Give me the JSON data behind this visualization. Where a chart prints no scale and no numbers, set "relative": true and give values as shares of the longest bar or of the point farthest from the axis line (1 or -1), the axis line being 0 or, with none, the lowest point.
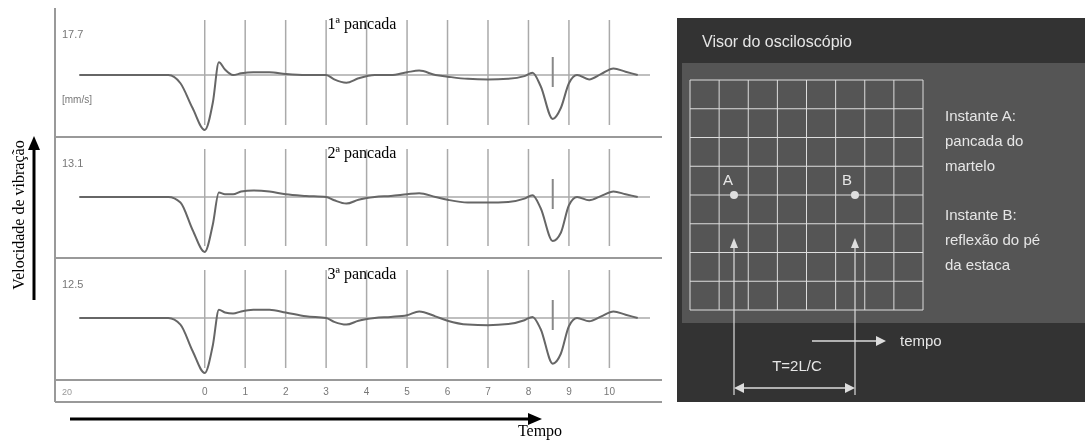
{
  "chart_data": [
    {
      "type": "line",
      "title": "1ª pancada",
      "relative": true,
      "grid": "x",
      "tick_labels": false,
      "xlim": [
        -3.7,
        11.3
      ],
      "xticks": [
        0,
        1,
        2,
        3,
        4,
        5,
        6,
        7,
        8,
        9,
        10
      ],
      "annotations": [
        "17.7",
        "[mm/s]"
      ],
      "ref_lines": [
        {
          "axis": "x",
          "value": 8.6
        }
      ],
      "series": [
        {
          "color": "#666666",
          "x": [
            -3.1,
            -1.3,
            -0.9,
            -0.6,
            -0.3,
            0,
            0.2,
            0.35,
            0.5,
            0.7,
            0.9,
            1.2,
            1.6,
            2,
            2.5,
            3,
            3.2,
            3.5,
            3.8,
            4.2,
            4.6,
            5,
            5.3,
            5.7,
            6,
            6.5,
            7,
            7.5,
            7.9,
            8.1,
            8.3,
            8.6,
            8.8,
            9,
            9.2,
            9.5,
            9.8,
            10.1,
            10.4,
            10.7
          ],
          "values": [
            0,
            0,
            0,
            -0.15,
            -0.6,
            -1,
            -0.5,
            0.23,
            0.1,
            0,
            0.03,
            0.05,
            0.05,
            0.02,
            0,
            0,
            -0.08,
            -0.14,
            -0.06,
            0,
            0,
            0.05,
            0.08,
            0,
            -0.03,
            -0.07,
            -0.08,
            -0.07,
            -0.02,
            0.04,
            -0.2,
            -0.8,
            -0.6,
            -0.15,
            0,
            -0.08,
            0.02,
            0.12,
            0.06,
            0
          ]
        }
      ]
    },
    {
      "type": "line",
      "title": "2ª pancada",
      "ylabel": "Velocidade de vibração",
      "relative": true,
      "grid": "x",
      "tick_labels": false,
      "xlim": [
        -3.7,
        11.3
      ],
      "xticks": [
        0,
        1,
        2,
        3,
        4,
        5,
        6,
        7,
        8,
        9,
        10
      ],
      "annotations": [
        "13.1"
      ],
      "ref_lines": [
        {
          "axis": "x",
          "value": 8.6
        }
      ],
      "series": [
        {
          "color": "#666666",
          "x": [
            -3.1,
            -1.3,
            -0.9,
            -0.6,
            -0.3,
            0,
            0.2,
            0.35,
            0.5,
            0.7,
            0.9,
            1.2,
            1.6,
            2,
            2.5,
            3,
            3.2,
            3.5,
            3.8,
            4.2,
            4.6,
            5,
            5.3,
            5.7,
            6,
            6.5,
            7,
            7.5,
            7.9,
            8.1,
            8.3,
            8.6,
            8.8,
            9,
            9.2,
            9.5,
            9.8,
            10.1,
            10.4,
            10.7
          ],
          "values": [
            0,
            0,
            0,
            -0.1,
            -0.6,
            -1,
            -0.5,
            0.08,
            0.05,
            0.05,
            0.1,
            0.12,
            0.1,
            0.05,
            0.02,
            0,
            -0.06,
            -0.12,
            -0.05,
            0,
            0.02,
            0.05,
            0.07,
            0,
            -0.05,
            -0.1,
            -0.1,
            -0.09,
            -0.03,
            0.03,
            -0.2,
            -0.8,
            -0.65,
            -0.15,
            0,
            -0.06,
            0.02,
            0.1,
            0.05,
            0
          ]
        }
      ]
    },
    {
      "type": "line",
      "title": "3ª pancada",
      "xlabel": "Tempo",
      "relative": true,
      "grid": "x",
      "tick_labels": "x",
      "xlim": [
        -3.7,
        11.3
      ],
      "xticks": [
        0,
        1,
        2,
        3,
        4,
        5,
        6,
        7,
        8,
        9,
        10
      ],
      "annotations": [
        "12.5",
        "20"
      ],
      "ref_lines": [
        {
          "axis": "x",
          "value": 8.6
        }
      ],
      "series": [
        {
          "color": "#666666",
          "x": [
            -3.1,
            -1.3,
            -0.9,
            -0.6,
            -0.3,
            0,
            0.2,
            0.35,
            0.5,
            0.7,
            0.9,
            1.2,
            1.6,
            2,
            2.5,
            3,
            3.2,
            3.5,
            3.8,
            4.2,
            4.6,
            5,
            5.3,
            5.7,
            6,
            6.5,
            7,
            7.5,
            7.9,
            8.1,
            8.3,
            8.6,
            8.8,
            9,
            9.2,
            9.5,
            9.8,
            10.1,
            10.4,
            10.7
          ],
          "values": [
            0,
            0,
            0,
            -0.12,
            -0.6,
            -1,
            -0.5,
            0.15,
            0.1,
            0.08,
            0.12,
            0.15,
            0.15,
            0.1,
            0.03,
            0,
            -0.07,
            -0.12,
            -0.05,
            0,
            0.02,
            0.05,
            0.12,
            0.03,
            -0.05,
            -0.12,
            -0.13,
            -0.11,
            -0.04,
            0.02,
            -0.2,
            -0.83,
            -0.65,
            -0.15,
            0,
            -0.06,
            0.03,
            0.12,
            0.06,
            0
          ]
        }
      ]
    },
    {
      "type": "other",
      "title": "Visor do osciloscópio",
      "annotations": [
        "Instante A: pancada do martelo",
        "Instante B: reflexão do pé da estaca",
        "A",
        "B",
        "tempo",
        "T=2L/C"
      ]
    }
  ]
}
